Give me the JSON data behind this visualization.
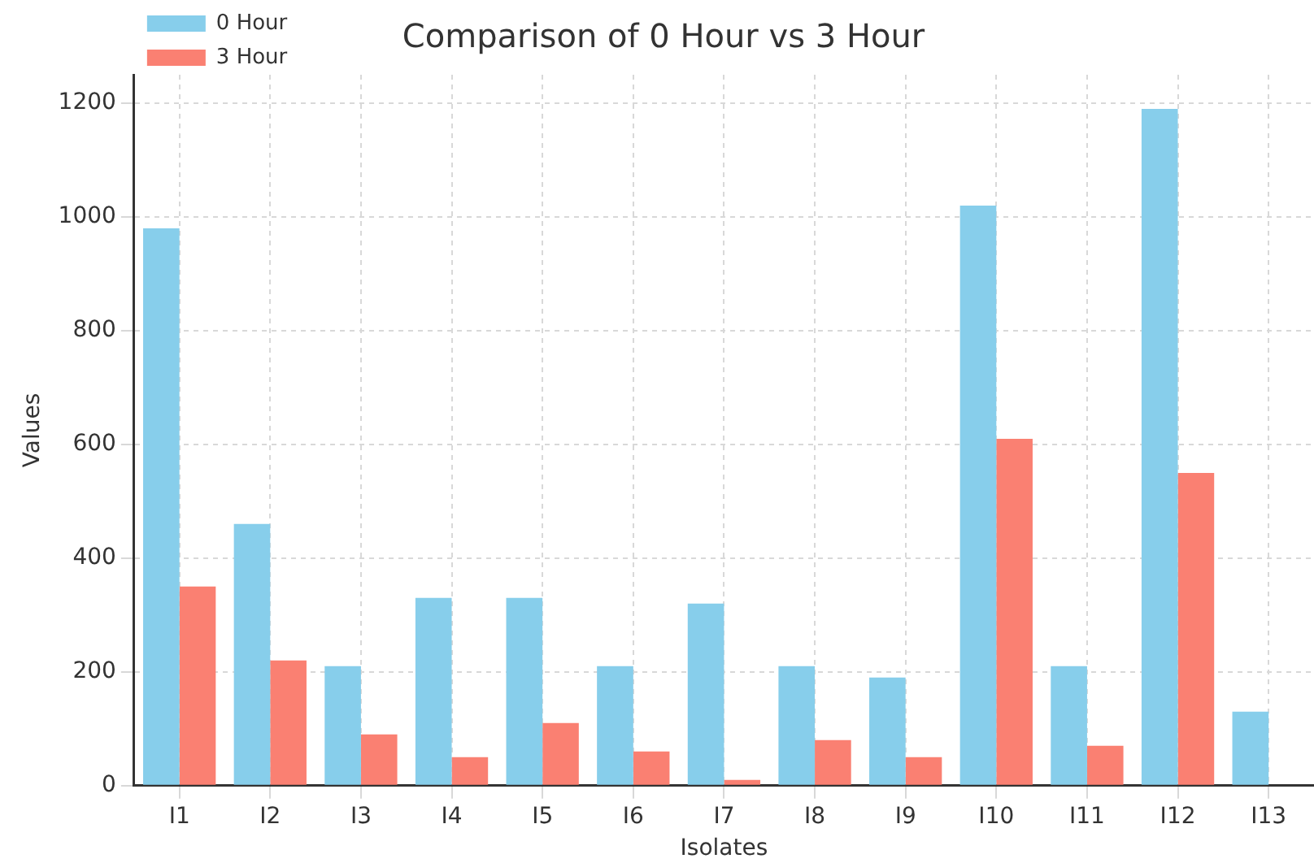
{
  "chart_data": {
    "type": "bar",
    "title": "Comparison of 0 Hour vs 3 Hour",
    "xlabel": "Isolates",
    "ylabel": "Values",
    "categories": [
      "I1",
      "I2",
      "I3",
      "I4",
      "I5",
      "I6",
      "I7",
      "I8",
      "I9",
      "I10",
      "I11",
      "I12",
      "I13"
    ],
    "series": [
      {
        "name": "0 Hour",
        "color": "#87ceeb",
        "values": [
          980,
          460,
          210,
          330,
          330,
          210,
          320,
          210,
          190,
          1020,
          210,
          1190,
          130
        ]
      },
      {
        "name": "3 Hour",
        "color": "#fa8072",
        "values": [
          350,
          220,
          90,
          50,
          110,
          60,
          10,
          80,
          50,
          610,
          70,
          550,
          0
        ]
      }
    ],
    "ylim": [
      0,
      1250
    ],
    "yticks": [
      0,
      200,
      400,
      600,
      800,
      1000,
      1200
    ],
    "grid": true,
    "legend": "top left"
  }
}
